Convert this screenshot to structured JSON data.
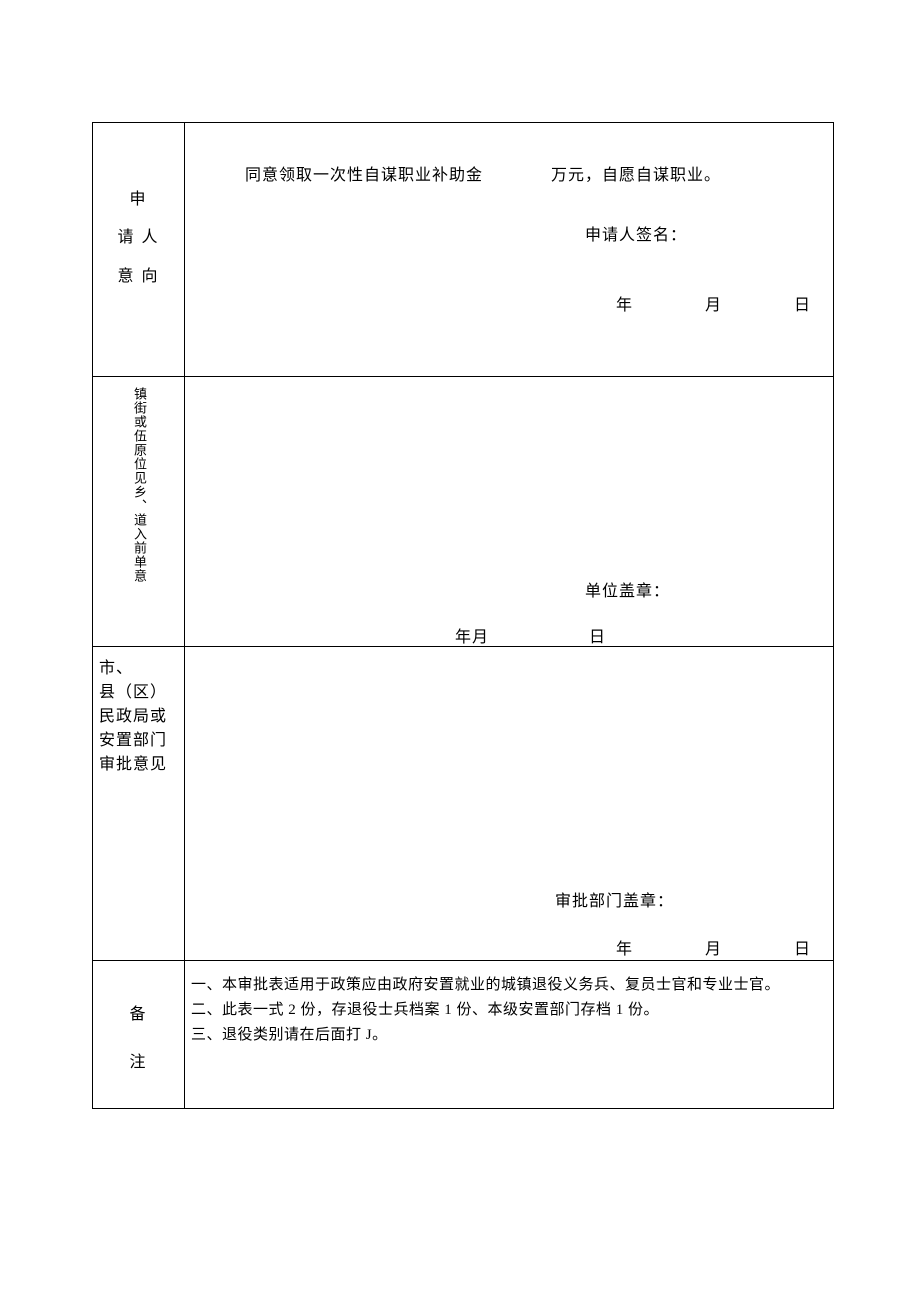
{
  "colors": {
    "page_bg": "#ffffff",
    "text": "#000000",
    "border": "#000000"
  },
  "typography": {
    "body_family": "SimSun",
    "body_size_pt": 12,
    "label_size_pt": 12
  },
  "row1": {
    "label_line1": "申",
    "label_line2": "请 人",
    "label_line3": "意 向",
    "text_before_amount": "同意领取一次性自谋职业补助金",
    "text_after_amount": "万元，自愿自谋职业。",
    "sign_label": "申请人签名：",
    "date_year": "年",
    "date_month": "月",
    "date_day": "日"
  },
  "row2": {
    "col_right": "镇街或伍原位见乡、道入前单意",
    "stamp_label": "单位盖章：",
    "date_ym": "年月",
    "date_day": "日"
  },
  "row3": {
    "label_l1": "市、",
    "label_l2": "县（区）",
    "label_l3": "民政局或",
    "label_l4": "安置部门",
    "label_l5": "审批意见",
    "stamp_label": "审批部门盖章：",
    "date_year": "年",
    "date_month": "月",
    "date_day": "日"
  },
  "row4": {
    "label_line1": "备",
    "label_line2": "注",
    "note1": "一、本审批表适用于政策应由政府安置就业的城镇退役义务兵、复员士官和专业士官。",
    "note2": "二、此表一式 2 份，存退役士兵档案 1 份、本级安置部门存档 1 份。",
    "note3": "三、退役类别请在后面打 J。"
  }
}
